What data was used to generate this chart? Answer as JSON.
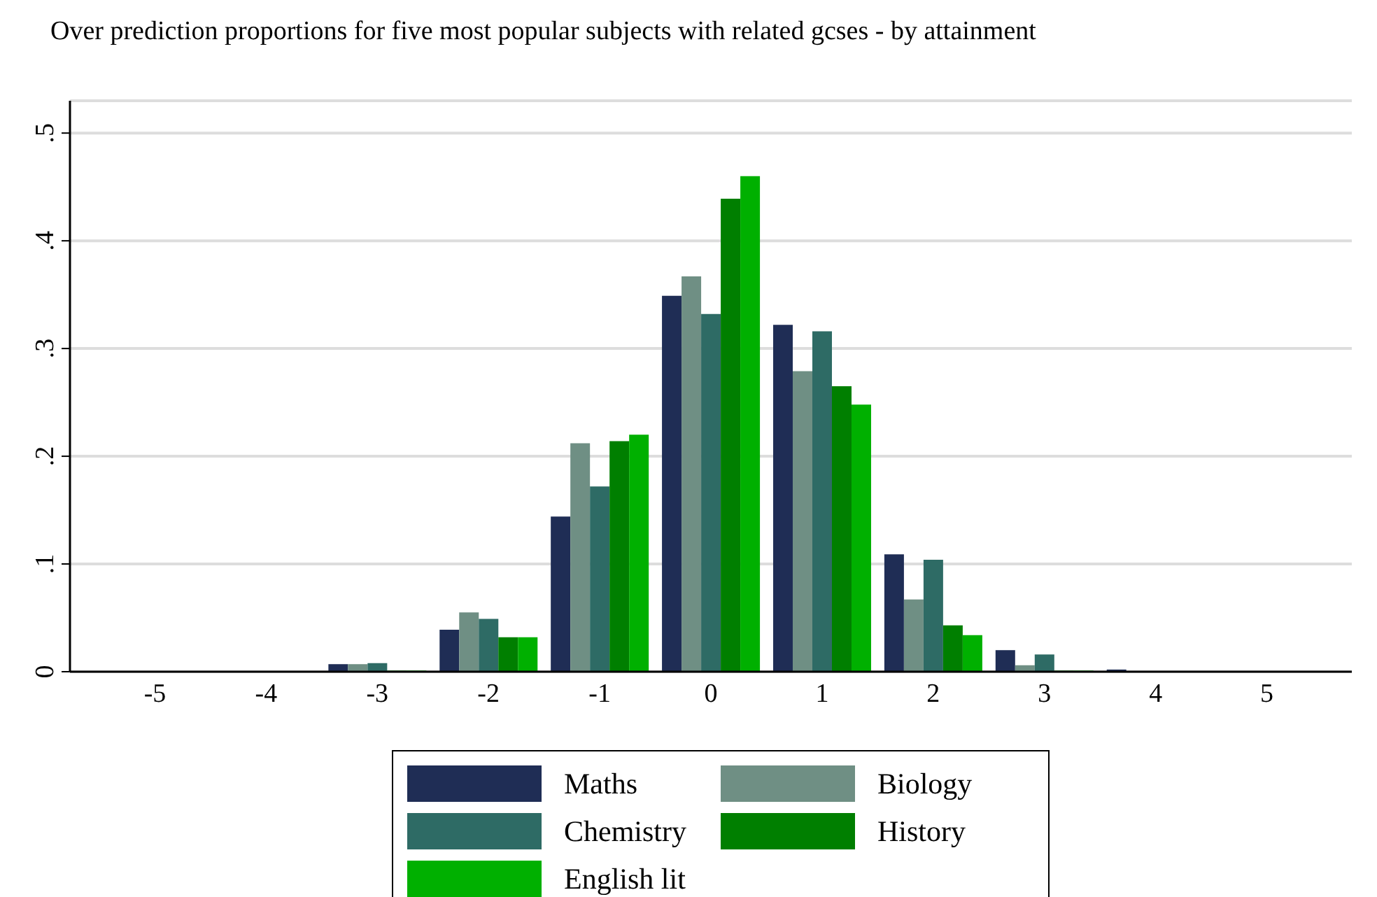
{
  "chart_data": {
    "type": "bar",
    "title": "Over prediction proportions for five most popular subjects with related gcses - by attainment",
    "categories": [
      "-5",
      "-4",
      "-3",
      "-2",
      "-1",
      "0",
      "1",
      "2",
      "3",
      "4",
      "5"
    ],
    "series": [
      {
        "name": "Maths",
        "color": "#1f2d55",
        "values": [
          0,
          0,
          0.007,
          0.039,
          0.144,
          0.349,
          0.322,
          0.109,
          0.02,
          0.002,
          0
        ]
      },
      {
        "name": "Biology",
        "color": "#6f8f84",
        "values": [
          0,
          0,
          0.007,
          0.055,
          0.212,
          0.367,
          0.279,
          0.067,
          0.006,
          0,
          0
        ]
      },
      {
        "name": "Chemistry",
        "color": "#2e6b65",
        "values": [
          0,
          0,
          0.008,
          0.049,
          0.172,
          0.332,
          0.316,
          0.104,
          0.016,
          0,
          0
        ]
      },
      {
        "name": "History",
        "color": "#007f00",
        "values": [
          0,
          0,
          0.001,
          0.032,
          0.214,
          0.439,
          0.265,
          0.043,
          0.001,
          0,
          0
        ]
      },
      {
        "name": "English lit",
        "color": "#00b000",
        "values": [
          0,
          0,
          0.001,
          0.032,
          0.22,
          0.46,
          0.248,
          0.034,
          0.001,
          0,
          0
        ]
      }
    ],
    "ylim": [
      0,
      0.53
    ],
    "yticks": [
      0,
      {
        "value": 0.1,
        "label": ".1"
      },
      {
        "value": 0.2,
        "label": ".2"
      },
      {
        "value": 0.3,
        "label": ".3"
      },
      {
        "value": 0.4,
        "label": ".4"
      },
      {
        "value": 0.5,
        "label": ".5"
      }
    ],
    "grid": "y",
    "legend": "bottom"
  }
}
